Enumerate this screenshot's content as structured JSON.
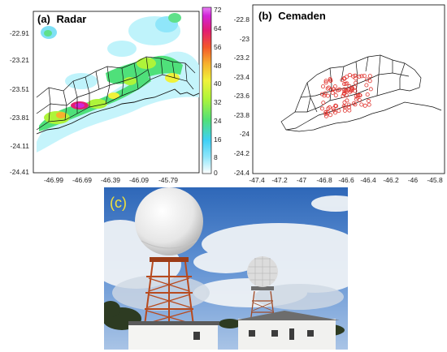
{
  "panels": [
    {
      "id": "a",
      "label": "(a)",
      "title": "Radar",
      "y_ticks": [
        "-22.91",
        "-23.21",
        "-23.51",
        "-23.81",
        "-24.11",
        "-24.41"
      ],
      "x_ticks": [
        "-46.99",
        "-46.69",
        "-46.39",
        "-46.09",
        "-45.79"
      ],
      "colorbar": {
        "ticks": [
          "72",
          "64",
          "56",
          "48",
          "40",
          "32",
          "24",
          "16",
          "8",
          "0"
        ],
        "colors": [
          "#ffffff",
          "#3fd0f5",
          "#4fe07a",
          "#aef43a",
          "#f0f23a",
          "#f7b12e",
          "#f3572a",
          "#e21d72",
          "#d225d8",
          "#e070f0"
        ]
      }
    },
    {
      "id": "b",
      "label": "(b)",
      "title": "Cemaden",
      "y_ticks": [
        "-22.8",
        "-23",
        "-23.2",
        "-23.4",
        "-23.6",
        "-23.8",
        "-24",
        "-24.2",
        "-24.4"
      ],
      "x_ticks": [
        "-47.4",
        "-47.2",
        "-47",
        "-46.8",
        "-46.6",
        "-46.4",
        "-46.2",
        "-46",
        "-45.8"
      ],
      "marker_color": "#e0332e"
    },
    {
      "id": "c",
      "label": "(c)"
    }
  ]
}
